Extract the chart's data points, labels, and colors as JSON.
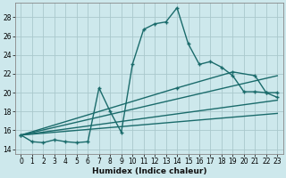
{
  "xlabel": "Humidex (Indice chaleur)",
  "background_color": "#cde8ec",
  "grid_color": "#aac8cc",
  "line_color": "#1a6b6b",
  "xlim": [
    -0.5,
    23.5
  ],
  "ylim": [
    13.5,
    29.5
  ],
  "xticks": [
    0,
    1,
    2,
    3,
    4,
    5,
    6,
    7,
    8,
    9,
    10,
    11,
    12,
    13,
    14,
    15,
    16,
    17,
    18,
    19,
    20,
    21,
    22,
    23
  ],
  "yticks": [
    14,
    16,
    18,
    20,
    22,
    24,
    26,
    28
  ],
  "line1_x": [
    0,
    1,
    2,
    3,
    4,
    5,
    6,
    7,
    8,
    9,
    10,
    11,
    12,
    13,
    14,
    15,
    16,
    17,
    18,
    19,
    20,
    21,
    22,
    23
  ],
  "line1_y": [
    15.5,
    14.8,
    14.7,
    15.0,
    14.8,
    14.7,
    14.8,
    20.5,
    18.0,
    15.8,
    23.0,
    26.7,
    27.3,
    27.5,
    29.0,
    25.2,
    23.0,
    23.3,
    22.7,
    21.8,
    20.1,
    20.1,
    20.0,
    19.5
  ],
  "line2_x": [
    0,
    14,
    19,
    21,
    22,
    23
  ],
  "line2_y": [
    15.5,
    20.5,
    22.2,
    21.8,
    20.0,
    20.0
  ],
  "line3_x": [
    0,
    23
  ],
  "line3_y": [
    15.5,
    21.8
  ],
  "line4_x": [
    0,
    23
  ],
  "line4_y": [
    15.5,
    19.2
  ],
  "line5_x": [
    0,
    23
  ],
  "line5_y": [
    15.5,
    17.8
  ]
}
